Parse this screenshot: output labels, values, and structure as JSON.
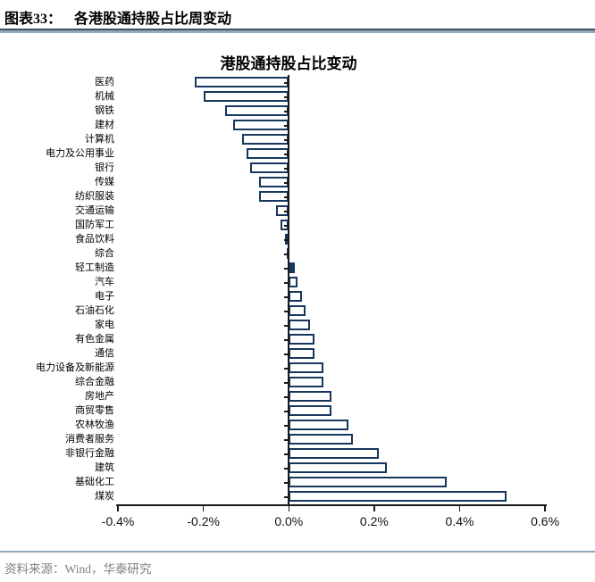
{
  "header": {
    "label": "图表33：",
    "title": "各港股通持股占比周变动"
  },
  "footer": {
    "source": "资料来源：Wind，华泰研究"
  },
  "colors": {
    "bar_border": "#17375E",
    "bar_fill": "#FFFFFF",
    "axis": "#1a1a1a",
    "header_rule_dark": "#3d4f63",
    "header_rule_light": "#93a7bc",
    "footer_rule": "#93a7bc",
    "source_text": "#7f7f7f"
  },
  "chart_data": {
    "type": "bar",
    "orientation": "horizontal",
    "title": "港股通持股占比变动",
    "unit": "%",
    "xlabel": "",
    "ylabel": "",
    "grid": false,
    "legend": null,
    "xlim": [
      -0.4,
      0.6
    ],
    "x_tick_labels": [
      "-0.4%",
      "-0.2%",
      "0.0%",
      "0.2%",
      "0.4%",
      "0.6%"
    ],
    "x_tick_values": [
      -0.4,
      -0.2,
      0.0,
      0.2,
      0.4,
      0.6
    ],
    "categories": [
      "医药",
      "机械",
      "钢铁",
      "建材",
      "计算机",
      "电力及公用事业",
      "银行",
      "传媒",
      "纺织服装",
      "交通运输",
      "国防军工",
      "食品饮料",
      "综合",
      "轻工制造",
      "汽车",
      "电子",
      "石油石化",
      "家电",
      "有色金属",
      "通信",
      "电力设备及新能源",
      "综合金融",
      "房地产",
      "商贸零售",
      "农林牧渔",
      "消费者服务",
      "非银行金融",
      "建筑",
      "基础化工",
      "煤炭"
    ],
    "values": [
      -0.22,
      -0.2,
      -0.15,
      -0.13,
      -0.11,
      -0.1,
      -0.09,
      -0.07,
      -0.07,
      -0.03,
      -0.02,
      -0.01,
      -0.005,
      0.015,
      0.02,
      0.03,
      0.04,
      0.05,
      0.06,
      0.06,
      0.08,
      0.08,
      0.1,
      0.1,
      0.14,
      0.15,
      0.21,
      0.23,
      0.37,
      0.51
    ]
  }
}
